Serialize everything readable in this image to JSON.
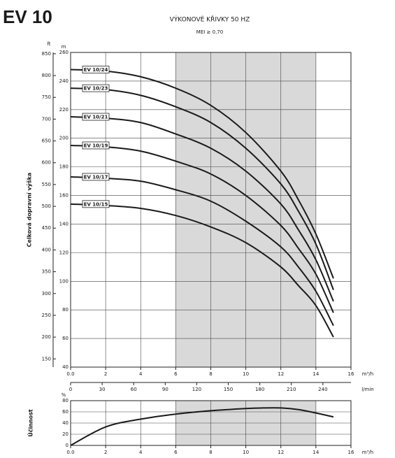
{
  "header": {
    "title": "EV 10"
  },
  "chart_data": [
    {
      "type": "line",
      "title": "VÝKONOVÉ KŘIVKY 50 HZ",
      "subtitle": "MEI ≥ 0,70",
      "ylabel": "Celková dopravní výška",
      "yunit": "m",
      "y2unit": "ft",
      "xunit": "m³/h",
      "x2unit": "l/min",
      "x": [
        0,
        2,
        4,
        6,
        8,
        10,
        12,
        13,
        14,
        15
      ],
      "series": [
        {
          "name": "EV 10/24",
          "color": "#1a1a1a",
          "values": [
            248,
            247,
            243,
            235,
            223,
            204,
            177,
            157,
            133,
            102
          ]
        },
        {
          "name": "EV 10/23",
          "color": "#1a1a1a",
          "values": [
            235,
            234,
            230,
            222,
            211,
            193,
            168,
            149,
            126,
            94
          ]
        },
        {
          "name": "EV 10/21",
          "color": "#1a1a1a",
          "values": [
            215,
            214,
            211,
            203,
            193,
            177,
            154,
            136,
            115,
            86
          ]
        },
        {
          "name": "EV 10/19",
          "color": "#1a1a1a",
          "values": [
            195,
            194,
            191,
            184,
            175,
            160,
            139,
            123,
            105,
            78
          ]
        },
        {
          "name": "EV 10/17",
          "color": "#1a1a1a",
          "values": [
            173,
            172,
            170,
            164,
            156,
            142,
            124,
            110,
            93,
            69
          ]
        },
        {
          "name": "EV 10/15",
          "color": "#1a1a1a",
          "values": [
            154,
            153,
            151,
            146,
            138,
            127,
            110,
            97,
            83,
            61
          ]
        }
      ],
      "xlim": [
        0,
        16
      ],
      "xticks": [
        {
          "value": 0,
          "label": "0.0"
        },
        2,
        4,
        6,
        8,
        10,
        12,
        14,
        16
      ],
      "x2lim": [
        0,
        266.7
      ],
      "x2ticks": [
        0,
        30,
        60,
        90,
        120,
        150,
        180,
        210,
        240
      ],
      "ylim": [
        40,
        260
      ],
      "yticks": [
        40,
        60,
        80,
        100,
        120,
        140,
        160,
        180,
        200,
        220,
        240,
        260
      ],
      "y2lim": [
        131.2,
        853
      ],
      "y2ticks": [
        150,
        200,
        250,
        300,
        350,
        400,
        450,
        500,
        550,
        600,
        650,
        700,
        750,
        800,
        850
      ],
      "shaded_range": [
        6,
        14
      ],
      "shade_color": "#d9d9d9",
      "grid": true
    },
    {
      "type": "line",
      "ylabel": "Účinnost",
      "yunit": "%",
      "xunit": "m³/h",
      "x": [
        0,
        2,
        4,
        6,
        8,
        10,
        11,
        12,
        13,
        14,
        15
      ],
      "series": [
        {
          "color": "#1a1a1a",
          "values": [
            0,
            33,
            47,
            56,
            62,
            66,
            67,
            67,
            64,
            58,
            51
          ]
        }
      ],
      "xlim": [
        0,
        16
      ],
      "xticks": [
        {
          "value": 0,
          "label": "0.0"
        },
        2,
        4,
        6,
        8,
        10,
        12,
        14,
        16
      ],
      "ylim": [
        0,
        80
      ],
      "yticks": [
        0,
        20,
        40,
        60,
        80
      ],
      "shaded_range": [
        6,
        14
      ],
      "shade_color": "#d9d9d9",
      "grid": true
    }
  ]
}
